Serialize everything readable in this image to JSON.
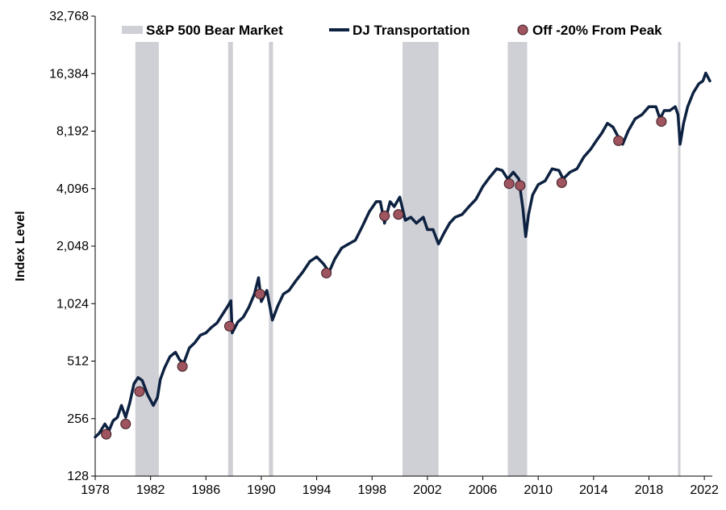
{
  "chart_data": {
    "type": "line",
    "title": "",
    "xlabel": "",
    "ylabel": "Index Level",
    "y_scale": "log2",
    "ylim": [
      128,
      32768
    ],
    "xlim": [
      1978,
      2022.4
    ],
    "x_ticks": [
      1978,
      1982,
      1986,
      1990,
      1994,
      1998,
      2002,
      2006,
      2010,
      2014,
      2018,
      2022
    ],
    "y_ticks": [
      128,
      256,
      512,
      1024,
      2048,
      4096,
      8192,
      16384,
      32768
    ],
    "y_tick_labels": [
      "128",
      "256",
      "512",
      "1,024",
      "2,048",
      "4,096",
      "8,192",
      "16,384",
      "32,768"
    ],
    "grid": false,
    "legend_position": "top",
    "legend": [
      {
        "name": "S&P 500 Bear Market",
        "kind": "band"
      },
      {
        "name": "DJ Transportation",
        "kind": "line"
      },
      {
        "name": "Off -20% From Peak",
        "kind": "marker"
      }
    ],
    "colors": {
      "band": "#cfcfd6",
      "line": "#0d2140",
      "marker": "#9e5560"
    },
    "bear_markets": [
      [
        1980.9,
        1982.6
      ],
      [
        1987.6,
        1987.95
      ],
      [
        1990.55,
        1990.85
      ],
      [
        2000.2,
        2002.8
      ],
      [
        2007.8,
        2009.2
      ],
      [
        2020.1,
        2020.25
      ]
    ],
    "series": [
      {
        "name": "DJ Transportation",
        "x": [
          1978.0,
          1978.3,
          1978.7,
          1979.0,
          1979.3,
          1979.6,
          1979.9,
          1980.2,
          1980.5,
          1980.8,
          1981.1,
          1981.4,
          1981.8,
          1982.2,
          1982.5,
          1982.7,
          1983.0,
          1983.4,
          1983.8,
          1984.1,
          1984.4,
          1984.8,
          1985.2,
          1985.6,
          1986.0,
          1986.4,
          1986.8,
          1987.2,
          1987.6,
          1987.8,
          1987.9,
          1988.3,
          1988.7,
          1989.1,
          1989.5,
          1989.8,
          1990.0,
          1990.4,
          1990.8,
          1991.2,
          1991.6,
          1992.0,
          1992.5,
          1993.0,
          1993.5,
          1994.0,
          1994.5,
          1994.9,
          1995.3,
          1995.8,
          1996.3,
          1996.8,
          1997.3,
          1997.8,
          1998.3,
          1998.6,
          1998.9,
          1999.3,
          1999.6,
          2000.0,
          2000.4,
          2000.8,
          2001.2,
          2001.7,
          2002.0,
          2002.4,
          2002.8,
          2003.2,
          2003.6,
          2004.0,
          2004.5,
          2005.0,
          2005.5,
          2006.0,
          2006.5,
          2007.0,
          2007.4,
          2007.8,
          2008.2,
          2008.6,
          2008.9,
          2009.1,
          2009.3,
          2009.6,
          2010.0,
          2010.5,
          2011.0,
          2011.5,
          2011.8,
          2012.3,
          2012.8,
          2013.3,
          2013.8,
          2014.2,
          2014.6,
          2015.0,
          2015.4,
          2015.8,
          2016.1,
          2016.5,
          2017.0,
          2017.5,
          2018.0,
          2018.5,
          2018.8,
          2019.1,
          2019.5,
          2019.9,
          2020.1,
          2020.25,
          2020.5,
          2020.8,
          2021.2,
          2021.6,
          2021.9,
          2022.1,
          2022.4
        ],
        "values": [
          205,
          215,
          240,
          222,
          250,
          260,
          300,
          260,
          310,
          390,
          420,
          405,
          340,
          300,
          330,
          410,
          470,
          540,
          570,
          520,
          500,
          600,
          640,
          700,
          720,
          770,
          810,
          900,
          1000,
          1060,
          720,
          820,
          870,
          980,
          1150,
          1400,
          1050,
          1200,
          840,
          1000,
          1150,
          1200,
          1350,
          1500,
          1700,
          1800,
          1650,
          1500,
          1750,
          2000,
          2100,
          2200,
          2600,
          3100,
          3500,
          3500,
          2700,
          3500,
          3300,
          3700,
          2800,
          2900,
          2700,
          2900,
          2500,
          2500,
          2100,
          2400,
          2700,
          2900,
          3000,
          3300,
          3600,
          4200,
          4700,
          5200,
          5100,
          4600,
          5000,
          4600,
          3200,
          2300,
          3000,
          3800,
          4300,
          4500,
          5200,
          5100,
          4600,
          5000,
          5200,
          6000,
          6600,
          7300,
          8000,
          9000,
          8600,
          7600,
          7000,
          8200,
          9500,
          10000,
          11000,
          11000,
          9500,
          10500,
          10500,
          11000,
          10000,
          7000,
          9000,
          11000,
          13000,
          14500,
          15000,
          16500,
          15000
        ]
      },
      {
        "name": "Off -20% From Peak",
        "x": [
          1978.8,
          1980.2,
          1981.2,
          1984.3,
          1987.7,
          1989.9,
          1994.7,
          1998.9,
          1999.9,
          2007.9,
          2008.7,
          2011.7,
          2015.8,
          2018.9
        ],
        "values": [
          212,
          240,
          355,
          480,
          780,
          1150,
          1480,
          2950,
          3000,
          4350,
          4250,
          4400,
          7300,
          9200
        ]
      }
    ]
  }
}
